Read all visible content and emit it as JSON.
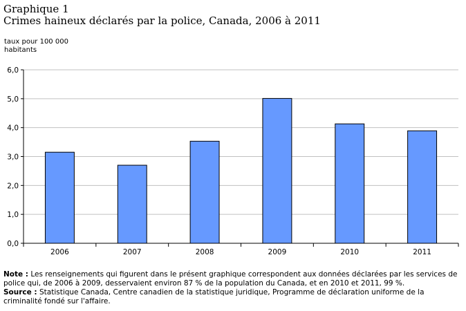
{
  "header": {
    "title_line1": "Graphique 1",
    "title_line2": "Crimes haineux déclarés par la police, Canada, 2006 à 2011"
  },
  "chart_data": {
    "type": "bar",
    "title": "Crimes haineux déclarés par la police, Canada, 2006 à 2011",
    "ylabel_line1": "taux pour 100 000",
    "ylabel_line2": "habitants",
    "xlabel": "",
    "categories": [
      "2006",
      "2007",
      "2008",
      "2009",
      "2010",
      "2011"
    ],
    "values": [
      3.15,
      2.7,
      3.53,
      5.01,
      4.13,
      3.89
    ],
    "ylim": [
      0,
      6
    ],
    "yticks": [
      "0,0",
      "1,0",
      "2,0",
      "3,0",
      "4,0",
      "5,0",
      "6,0"
    ],
    "grid": true,
    "bar_color": "#6699ff",
    "bar_edge_color": "#000000",
    "grid_color": "#c0c0c0"
  },
  "footer": {
    "note_label": "Note :",
    "note_text": "Les renseignements qui figurent dans le présent graphique correspondent aux données déclarées par les services de police qui, de 2006 à 2009, desservaient environ 87 % de la population du Canada, et en 2010 et 2011, 99 %.",
    "source_label": "Source :",
    "source_text": "Statistique Canada, Centre canadien de la statistique juridique, Programme de déclaration uniforme de la criminalité fondé sur l'affaire."
  }
}
